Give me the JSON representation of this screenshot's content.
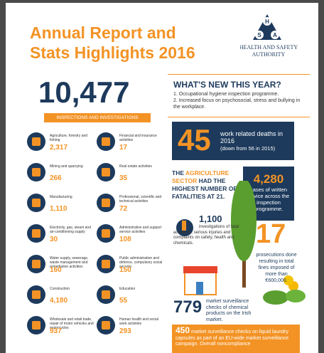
{
  "header": {
    "title_lines": [
      "Annual Report and",
      "Stats Highlights 2016"
    ],
    "logo": {
      "letters": [
        "H",
        "S",
        "A"
      ],
      "name_lines": [
        "HEALTH AND SAFETY",
        "AUTHORITY"
      ]
    }
  },
  "inspections": {
    "total": "10,477",
    "label": "INSPECTIONS AND INVESTIGATIONS"
  },
  "sectors": {
    "left": [
      {
        "label": "Agriculture, forestry and fishing",
        "value": "2,317"
      },
      {
        "label": "Mining and quarrying",
        "value": "266"
      },
      {
        "label": "Manufacturing",
        "value": "1,110"
      },
      {
        "label": "Electricity, gas, steam and air-conditioning supply",
        "value": "30"
      },
      {
        "label": "Water supply, sewerage, waste management and remediation activities",
        "value": "160"
      },
      {
        "label": "Construction",
        "value": "4,180"
      },
      {
        "label": "Wholesale and retail trade, repair of motor vehicles and motorcycles",
        "value": "937"
      }
    ],
    "right": [
      {
        "label": "Financial and insurance activities",
        "value": "17"
      },
      {
        "label": "Real estate activities",
        "value": "35"
      },
      {
        "label": "Professional, scientific and technical activities",
        "value": "72"
      },
      {
        "label": "Administrative and support service activities",
        "value": "108"
      },
      {
        "label": "Public administration and defence, compulsory social security",
        "value": "150"
      },
      {
        "label": "Education",
        "value": "55"
      },
      {
        "label": "Human health and social work activities",
        "value": "293"
      }
    ]
  },
  "whats_new": {
    "title": "WHAT'S NEW THIS YEAR?",
    "items": [
      "1. Occupational hygiene inspection programme.",
      "2. Increased focus on psychosocial, stress and bullying in the workplace."
    ]
  },
  "deaths": {
    "number": "45",
    "text": "work related deaths in 2016",
    "note": "(down from 56 in 2015)"
  },
  "fatalities": {
    "parts": [
      "THE",
      "AGRICULTURE SECTOR",
      "HAD THE HIGHEST NUMBER OF FATALITIES AT 21."
    ]
  },
  "advice": {
    "number": "4,280",
    "text": "cases of written advice across the inspection programme."
  },
  "investigations": {
    "number": "1,100",
    "text": "investigations of fatal accidents, serious injuries and complaints on safety, health and chemicals."
  },
  "prosecutions": {
    "number": "17",
    "text": "prosecutions done resulting in total fines imposed of more than €600,000."
  },
  "market": {
    "number": "779",
    "text": "market surveillance checks of chemical products on the Irish market."
  },
  "capsules": {
    "number": "450",
    "text": "market surveillance checks on liquid laundry capsules as part of an EU-wide market surveillance campaign. Overall noncompliance"
  }
}
